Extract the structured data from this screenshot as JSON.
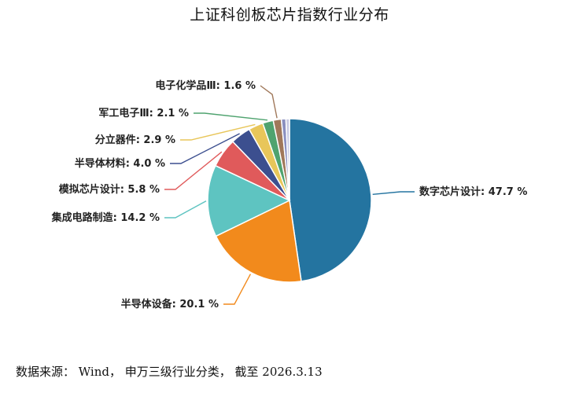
{
  "chart_data": {
    "type": "pie",
    "title": "上证科创板芯片指数行业分布",
    "slices": [
      {
        "label": "数字芯片设计",
        "value": 47.7,
        "display": "47.7 %",
        "color": "#2474a0"
      },
      {
        "label": "半导体设备",
        "value": 20.1,
        "display": "20.1 %",
        "color": "#f28a1c"
      },
      {
        "label": "集成电路制造",
        "value": 14.2,
        "display": "14.2 %",
        "color": "#5ec4c1"
      },
      {
        "label": "模拟芯片设计",
        "value": 5.8,
        "display": "5.8 %",
        "color": "#e05a5b"
      },
      {
        "label": "半导体材料",
        "value": 4.0,
        "display": "4.0 %",
        "color": "#3c4f8f"
      },
      {
        "label": "分立器件",
        "value": 2.9,
        "display": "2.9 %",
        "color": "#e8c65a"
      },
      {
        "label": "军工电子Ⅲ",
        "value": 2.1,
        "display": "2.1 %",
        "color": "#4fa36f"
      },
      {
        "label": "电子化学品Ⅲ",
        "value": 1.6,
        "display": "1.6 %",
        "color": "#a0785a"
      },
      {
        "label": "",
        "value": 0.9,
        "display": "",
        "color": "#8a8fbf"
      },
      {
        "label": "",
        "value": 0.7,
        "display": "",
        "color": "#c7c9e2"
      }
    ],
    "start": "top",
    "direction": "clockwise"
  },
  "source_note": "数据来源： Wind， 申万三级行业分类， 截至 2026.3.13"
}
